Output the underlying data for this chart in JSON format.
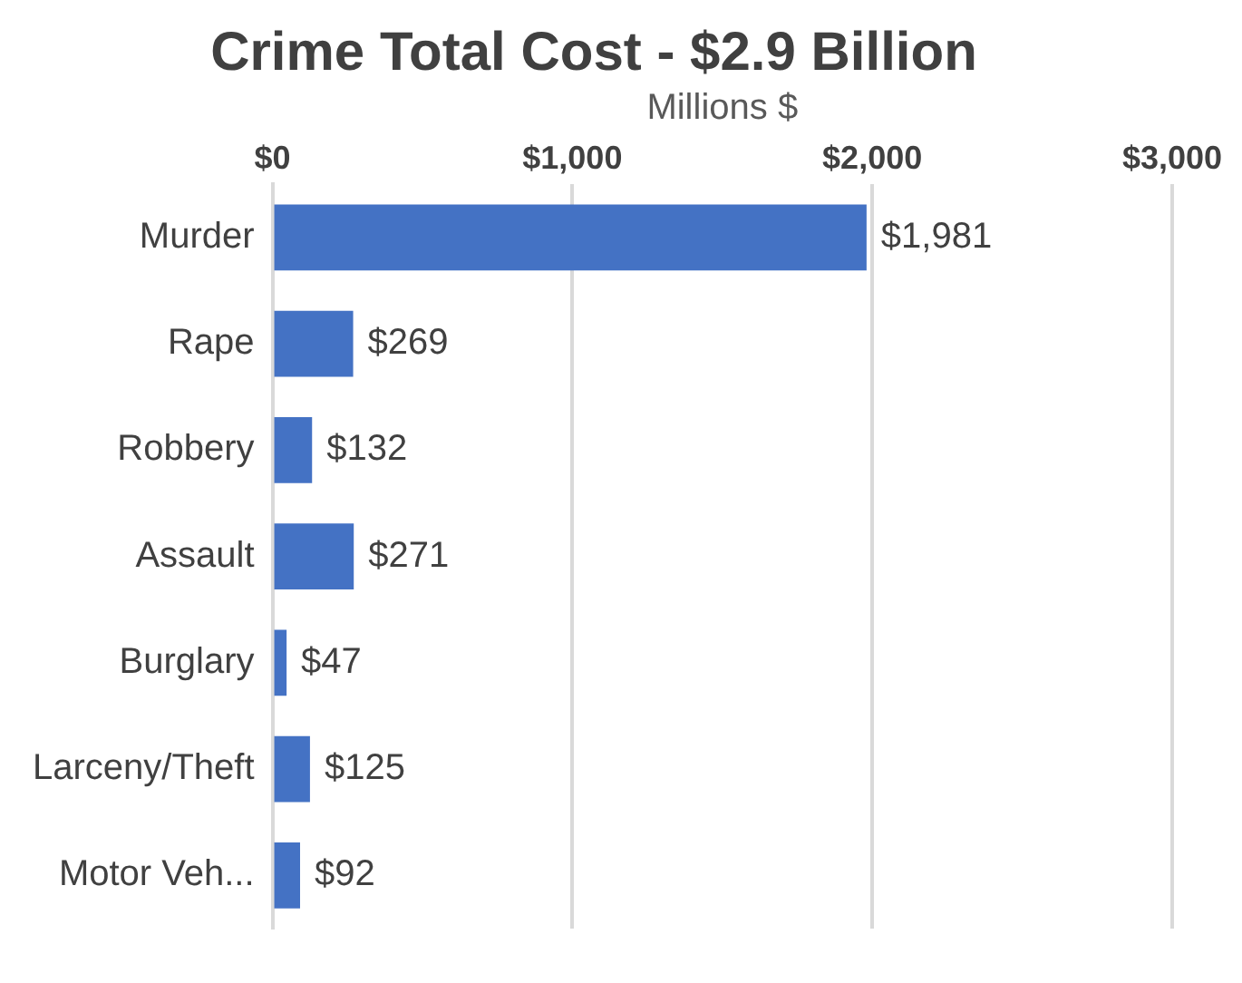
{
  "chart_data": {
    "type": "bar",
    "orientation": "horizontal",
    "title": "Crime Total Cost - $2.9 Billion",
    "xlabel": "Millions $",
    "categories": [
      "Murder",
      "Rape",
      "Robbery",
      "Assault",
      "Burglary",
      "Larceny/Theft",
      "Motor Veh..."
    ],
    "values": [
      1981,
      269,
      132,
      271,
      47,
      125,
      92
    ],
    "value_labels": [
      "$1,981",
      "$269",
      "$132",
      "$271",
      "$47",
      "$125",
      "$92"
    ],
    "color": "#4472c4",
    "xlim": [
      0,
      3000
    ],
    "xticks": [
      {
        "value": 0,
        "label": "$0"
      },
      {
        "value": 1000,
        "label": "$1,000"
      },
      {
        "value": 2000,
        "label": "$2,000"
      },
      {
        "value": 3000,
        "label": "$3,000"
      }
    ],
    "grid": "x"
  }
}
